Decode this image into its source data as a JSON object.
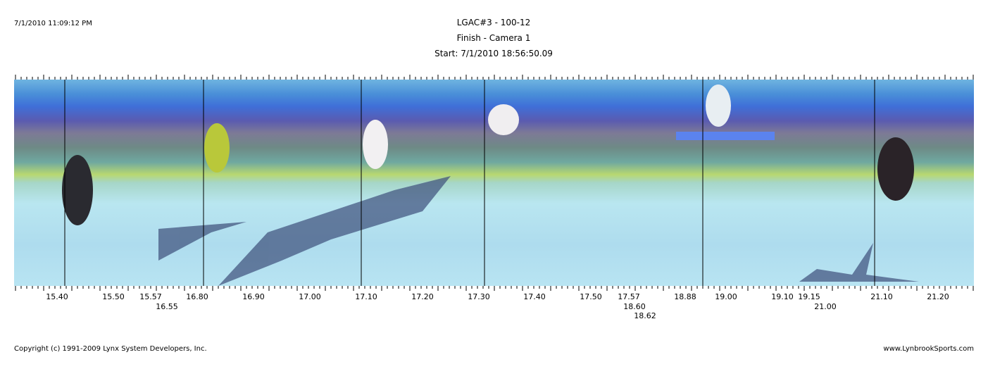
{
  "header": {
    "timestamp": "7/1/2010 11:09:12 PM",
    "title": "LGAC#3 - 100-12",
    "subtitle": "Finish - Camera 1",
    "start": "Start: 7/1/2010 18:56:50.09"
  },
  "time_labels": [
    "15.40",
    "15.50",
    "15.57",
    "16.55",
    "16.80",
    "16.90",
    "17.00",
    "17.10",
    "17.20",
    "17.30",
    "17.40",
    "17.50",
    "17.57",
    "18.60",
    "18.62",
    "18.88",
    "19.00",
    "19.10",
    "19.15",
    "21.00",
    "21.10",
    "21.20"
  ],
  "footer": {
    "copyright": "Copyright (c) 1991-2009 Lynx System Developers, Inc.",
    "website": "www.LynbrookSports.com"
  }
}
